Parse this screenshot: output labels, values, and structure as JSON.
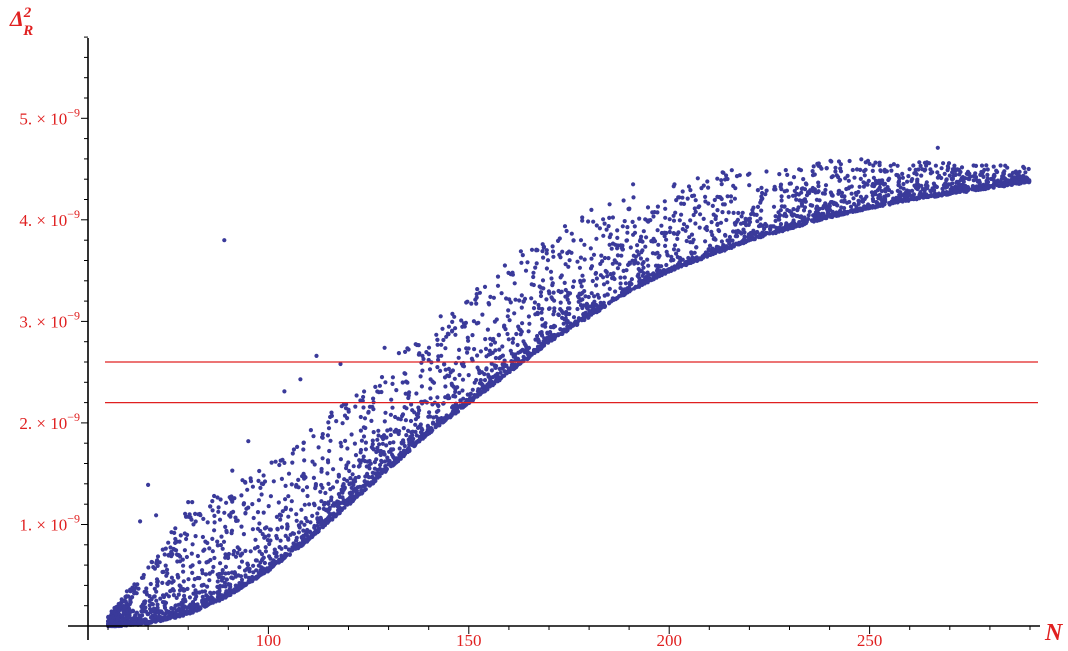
{
  "chart_data": {
    "type": "scatter",
    "xlabel": "N",
    "ylabel": "Δ",
    "ylabel_sub": "R",
    "ylabel_sup": "2",
    "xlim": [
      55,
      292
    ],
    "ylim": [
      0,
      5.85
    ],
    "y_unit_exponent": "−9",
    "x_ticks": [
      {
        "value": 100,
        "label": "100"
      },
      {
        "value": 150,
        "label": "150"
      },
      {
        "value": 200,
        "label": "200"
      },
      {
        "value": 250,
        "label": "250"
      }
    ],
    "y_ticks": [
      {
        "value": 1,
        "mantissa": "1.",
        "base": "× 10",
        "exp": "−9"
      },
      {
        "value": 2,
        "mantissa": "2.",
        "base": "× 10",
        "exp": "−9"
      },
      {
        "value": 3,
        "mantissa": "3.",
        "base": "× 10",
        "exp": "−9"
      },
      {
        "value": 4,
        "mantissa": "4.",
        "base": "× 10",
        "exp": "−9"
      },
      {
        "value": 5,
        "mantissa": "5.",
        "base": "× 10",
        "exp": "−9"
      }
    ],
    "hlines": [
      2.2,
      2.6
    ],
    "grid": false,
    "legend": "none",
    "series": [
      {
        "trend_curve": [
          [
            60,
            0.0
          ],
          [
            70,
            0.03
          ],
          [
            80,
            0.12
          ],
          [
            90,
            0.3
          ],
          [
            100,
            0.55
          ],
          [
            110,
            0.85
          ],
          [
            120,
            1.2
          ],
          [
            130,
            1.55
          ],
          [
            140,
            1.9
          ],
          [
            150,
            2.2
          ],
          [
            160,
            2.5
          ],
          [
            170,
            2.8
          ],
          [
            180,
            3.05
          ],
          [
            190,
            3.3
          ],
          [
            200,
            3.5
          ],
          [
            210,
            3.65
          ],
          [
            220,
            3.8
          ],
          [
            230,
            3.92
          ],
          [
            240,
            4.03
          ],
          [
            250,
            4.12
          ],
          [
            260,
            4.2
          ],
          [
            270,
            4.26
          ],
          [
            280,
            4.32
          ],
          [
            290,
            4.38
          ]
        ],
        "outliers": [
          [
            89,
            3.8
          ],
          [
            191,
            4.35
          ],
          [
            245,
            4.58
          ],
          [
            267,
            4.71
          ],
          [
            163,
            3.69
          ],
          [
            178,
            3.8
          ],
          [
            159,
            3.55
          ],
          [
            143,
            3.05
          ],
          [
            112,
            2.66
          ],
          [
            129,
            2.74
          ],
          [
            70,
            1.39
          ],
          [
            95,
            1.82
          ],
          [
            68,
            1.03
          ],
          [
            72,
            1.09
          ],
          [
            80,
            1.22
          ],
          [
            81,
            1.22
          ],
          [
            118,
            2.58
          ],
          [
            108,
            2.43
          ],
          [
            199,
            4.02
          ],
          [
            187,
            3.72
          ],
          [
            212,
            3.95
          ],
          [
            223,
            4.23
          ],
          [
            232,
            4.1
          ],
          [
            257,
            4.44
          ],
          [
            149,
            2.95
          ],
          [
            140,
            2.62
          ],
          [
            104,
            2.31
          ],
          [
            91,
            1.53
          ],
          [
            86,
            1.23
          ],
          [
            168,
            3.25
          ],
          [
            152,
            2.98
          ],
          [
            176,
            3.34
          ],
          [
            120,
            2.13
          ],
          [
            98,
            1.36
          ],
          [
            75,
            0.82
          ]
        ],
        "scatter_density": 4200
      }
    ]
  },
  "colors": {
    "point": "#3a3a9a",
    "hline": "#e02020",
    "axis": "#000000",
    "tick_label": "#e02020",
    "axis_title": "#e02020"
  }
}
